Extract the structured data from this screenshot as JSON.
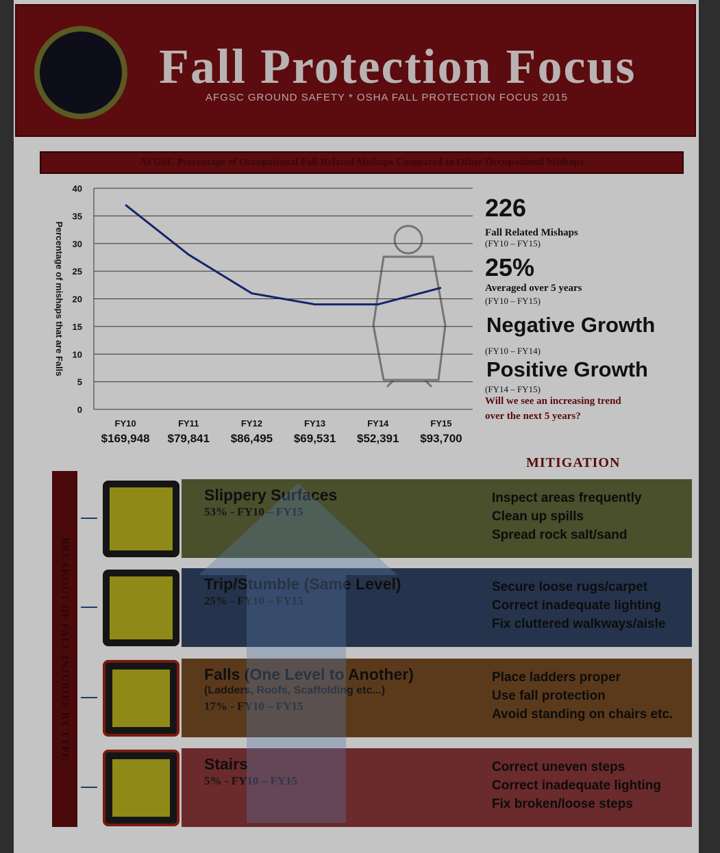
{
  "header": {
    "title": "Fall Protection Focus",
    "subtitle": "AFGSC GROUND SAFETY * OSHA FALL PROTECTION FOCUS 2015"
  },
  "chart_data": {
    "type": "line",
    "title": "AFGSC Percentage of Occupational Fall Related Mishaps Compared to Other Occupational Mishaps",
    "y_label": "Percentage of mishaps that are Falls",
    "categories": [
      "FY10",
      "FY11",
      "FY12",
      "FY13",
      "FY14",
      "FY15"
    ],
    "cost_labels": [
      "$169,948",
      "$79,841",
      "$86,495",
      "$69,531",
      "$52,391",
      "$93,700"
    ],
    "values": [
      37,
      28,
      21,
      19,
      19,
      22
    ],
    "color": "#16246a",
    "ylim": [
      0,
      40
    ],
    "yticks": [
      0,
      5,
      10,
      15,
      20,
      25,
      30,
      35,
      40
    ],
    "grid": true
  },
  "stats": [
    {
      "value": "226",
      "lines": [
        "Fall Related Mishaps",
        "(FY10 – FY15)"
      ]
    },
    {
      "value": "25%",
      "lines": [
        "Averaged over 5 years",
        "(FY10 – FY15)"
      ]
    },
    {
      "value": "Negative Growth",
      "lines": [
        "(FY10 – FY14)"
      ]
    },
    {
      "value": "Positive Growth",
      "lines": [
        "(FY14 – FY15)"
      ]
    }
  ],
  "question": [
    "Will we see an increasing trend",
    "over the next 5 years?"
  ],
  "mitigation_heading": "MITIGATION",
  "sidebar": "BREAKOUT OF FALL INJURIES BY TYPE",
  "rows": [
    {
      "title": "Slippery Surfaces",
      "lines": [
        "53% - FY10 – FY15"
      ],
      "mitigation": [
        "Inspect areas frequently",
        "Clean up spills",
        "Spread rock salt/sand"
      ]
    },
    {
      "title": "Trip/Stumble (Same Level)",
      "lines": [
        "25% - FY10 – FY15"
      ],
      "mitigation": [
        "Secure loose rugs/carpet",
        "Correct inadequate lighting",
        "Fix cluttered walkways/aisle"
      ]
    },
    {
      "title": "Falls (One Level to Another)",
      "lines": [
        "(Ladders, Roofs, Scaffolding etc...)",
        "17% - FY10 – FY15"
      ],
      "mitigation": [
        "Place ladders proper",
        "Use fall protection",
        "Avoid standing on chairs etc."
      ]
    },
    {
      "title": "Stairs",
      "lines": [
        "5% - FY10 – FY15"
      ],
      "mitigation": [
        "Correct uneven steps",
        "Correct inadequate lighting",
        "Fix broken/loose steps"
      ]
    }
  ]
}
